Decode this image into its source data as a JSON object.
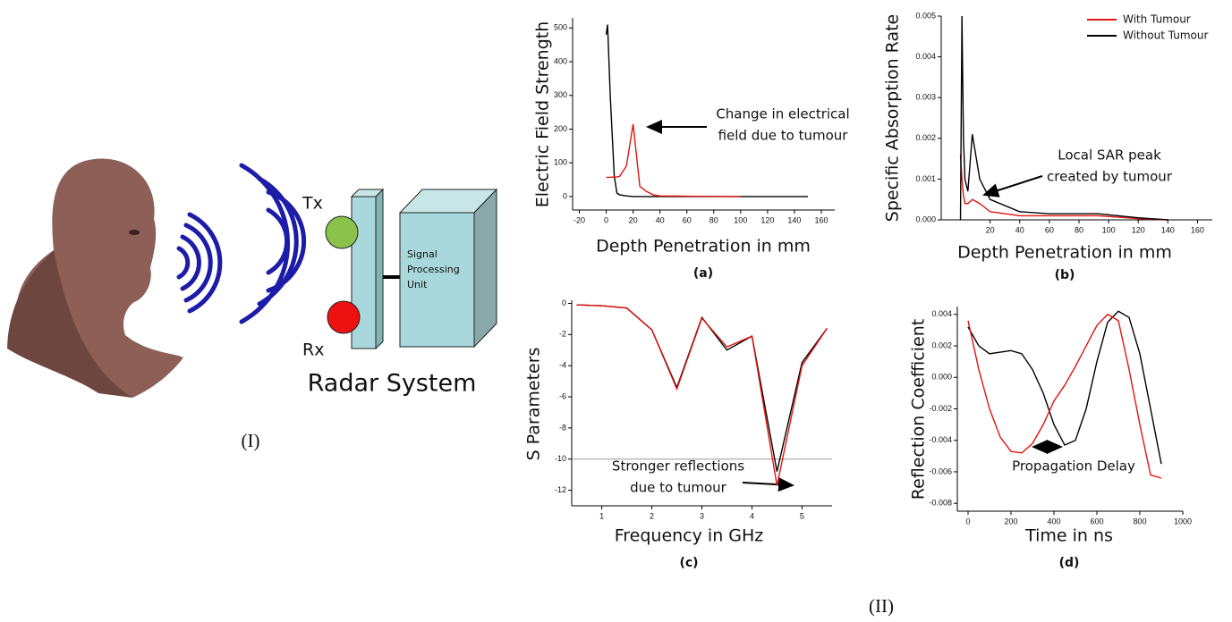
{
  "chart_data": [
    {
      "type": "line",
      "caption": "(a)",
      "xlabel": "Depth Penetration in mm",
      "ylabel": "Electric Field Strength",
      "annotation": [
        "Change in electrical",
        "field due to tumour"
      ],
      "x": [
        0,
        1,
        3,
        6,
        8,
        10,
        15,
        20,
        25,
        30,
        35,
        40,
        60,
        100,
        150
      ],
      "series": [
        {
          "color": "#000000",
          "values": [
            480,
            510,
            300,
            60,
            10,
            5,
            2,
            0,
            0,
            0,
            0,
            0,
            0,
            0,
            0
          ]
        },
        {
          "color": "#e0140f",
          "values": [
            57,
            57,
            57,
            58,
            58,
            60,
            90,
            215,
            30,
            15,
            5,
            2,
            1,
            0,
            null
          ]
        }
      ],
      "xlim": [
        -25,
        170
      ],
      "xticks": [
        -20,
        0,
        20,
        40,
        60,
        80,
        100,
        120,
        140,
        160
      ],
      "ylim": [
        -40,
        530
      ],
      "yticks": [
        0,
        100,
        200,
        300,
        400,
        500
      ]
    },
    {
      "type": "line",
      "caption": "(b)",
      "xlabel": "Depth Penetration in mm",
      "ylabel": "Specific Absorption Rate",
      "annotation": [
        "Local SAR peak",
        "created by tumour"
      ],
      "legend": "upper right",
      "x": [
        0,
        1,
        2,
        3,
        5,
        8,
        13,
        20,
        40,
        60,
        93,
        120,
        140
      ],
      "series": [
        {
          "name": "With Tumour",
          "color": "#e0140f",
          "values": [
            0.0016,
            0.001,
            0.0006,
            0.0004,
            0.0004,
            0.0005,
            0.0004,
            0.0002,
            0.0001,
            0.0001,
            0.0001,
            3e-05,
            0
          ]
        },
        {
          "name": "Without Tumour",
          "color": "#000000",
          "values": [
            0,
            0.005,
            0.002,
            0.001,
            0.0007,
            0.0021,
            0.001,
            0.0005,
            0.0002,
            0.00015,
            0.00015,
            5e-05,
            0
          ]
        }
      ],
      "xlim": [
        -13,
        170
      ],
      "xticks": [
        20,
        40,
        60,
        80,
        100,
        120,
        140,
        160
      ],
      "ylim": [
        0,
        0.005
      ],
      "yticks": [
        {
          "value": 0,
          "label": "0.000"
        },
        {
          "value": 0.001,
          "label": "0.001"
        },
        {
          "value": 0.002,
          "label": "0.002"
        },
        {
          "value": 0.003,
          "label": "0.003"
        },
        {
          "value": 0.004,
          "label": "0.004"
        },
        {
          "value": 0.005,
          "label": "0.005"
        }
      ]
    },
    {
      "type": "line",
      "caption": "(c)",
      "xlabel": "Frequency in GHz",
      "ylabel": "S Parameters",
      "annotation": [
        "Stronger reflections",
        "due to tumour"
      ],
      "hline": -10,
      "x": [
        0.5,
        1,
        1.5,
        2,
        2.5,
        3,
        3.5,
        4,
        4.5,
        5,
        5.5
      ],
      "series": [
        {
          "color": "#000000",
          "values": [
            -0.1,
            -0.15,
            -0.3,
            -1.7,
            -5.4,
            -0.9,
            -3.0,
            -2.1,
            -10.8,
            -3.8,
            -1.6
          ]
        },
        {
          "color": "#e0140f",
          "values": [
            -0.1,
            -0.15,
            -0.3,
            -1.7,
            -5.5,
            -0.95,
            -2.8,
            -2.1,
            -11.7,
            -4.0,
            -1.6
          ]
        }
      ],
      "xlim": [
        0.4,
        5.6
      ],
      "xticks": [
        1,
        2,
        3,
        4,
        5
      ],
      "ylim": [
        -13,
        0.2
      ],
      "yticks": [
        0,
        -2,
        -4,
        -6,
        -8,
        -10,
        -12
      ]
    },
    {
      "type": "line",
      "caption": "(d)",
      "xlabel": "Time in ns",
      "ylabel": "Reflection Coefficient",
      "annotation": [
        "Propagation Delay"
      ],
      "x": [
        0,
        50,
        100,
        150,
        200,
        250,
        300,
        350,
        400,
        450,
        500,
        550,
        600,
        650,
        700,
        750,
        800,
        850,
        900
      ],
      "series": [
        {
          "color": "#000000",
          "values": [
            0.0032,
            0.002,
            0.0015,
            0.0016,
            0.0017,
            0.0015,
            0.0005,
            -0.001,
            -0.003,
            -0.0043,
            -0.004,
            -0.002,
            0.001,
            0.0035,
            0.0042,
            0.0038,
            0.0015,
            -0.002,
            -0.0055
          ]
        },
        {
          "color": "#e0140f",
          "values": [
            0.0036,
            0.0005,
            -0.002,
            -0.0038,
            -0.0047,
            -0.0048,
            -0.0042,
            -0.003,
            -0.0015,
            -0.0005,
            0.0007,
            0.002,
            0.0033,
            0.004,
            0.0036,
            0.0005,
            -0.003,
            -0.0062,
            -0.0064
          ]
        }
      ],
      "xlim": [
        -50,
        1000
      ],
      "xticks": [
        0,
        200,
        400,
        600,
        800,
        1000
      ],
      "ylim": [
        -0.0085,
        0.0045
      ],
      "yticks": [
        {
          "value": -0.008,
          "label": "-0.008"
        },
        {
          "value": -0.006,
          "label": "-0.006"
        },
        {
          "value": -0.004,
          "label": "-0.004"
        },
        {
          "value": -0.002,
          "label": "-0.002"
        },
        {
          "value": 0,
          "label": "0.000"
        },
        {
          "value": 0.002,
          "label": "0.002"
        },
        {
          "value": 0.004,
          "label": "0.004"
        }
      ]
    }
  ],
  "diagram": {
    "tx": "Tx",
    "rx": "Rx",
    "unit": [
      "Signal",
      "Processing",
      "Unit"
    ],
    "system": "Radar System",
    "caption": "(I)"
  },
  "figure_caption": "(II)"
}
